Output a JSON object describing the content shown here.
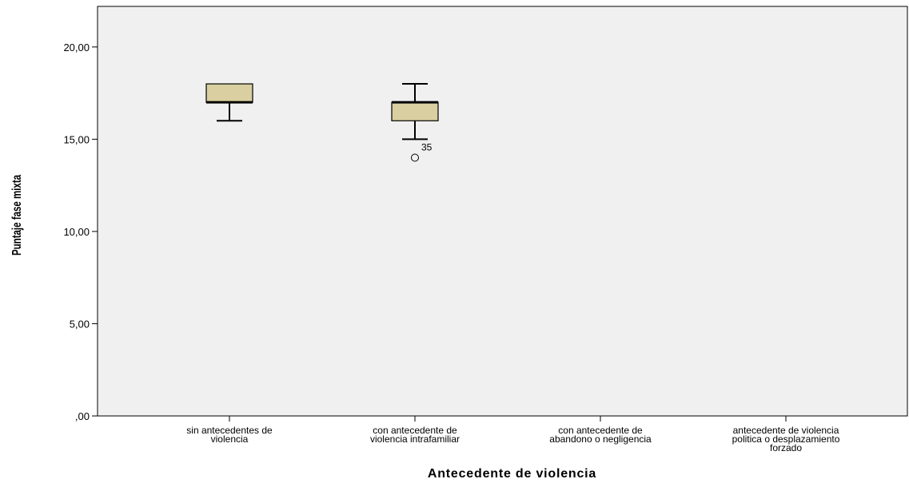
{
  "chart_data": {
    "type": "boxplot",
    "xlabel": "Antecedente de violencia",
    "ylabel": "Puntaje fase mixta",
    "ylim": [
      0,
      22.2
    ],
    "y_ticks": [
      {
        "value": 0,
        "label": ",00"
      },
      {
        "value": 5,
        "label": "5,00"
      },
      {
        "value": 10,
        "label": "10,00"
      },
      {
        "value": 15,
        "label": "15,00"
      },
      {
        "value": 20,
        "label": "20,00"
      }
    ],
    "categories": [
      {
        "label_lines": [
          "sin antecedentes de",
          "violencia"
        ]
      },
      {
        "label_lines": [
          "con antecedente de",
          "violencia intrafamiliar"
        ]
      },
      {
        "label_lines": [
          "con antecedente de",
          "abandono o negligencia"
        ]
      },
      {
        "label_lines": [
          "antecedente de violencia",
          "politica o desplazamiento",
          "forzado"
        ]
      }
    ],
    "boxes": [
      {
        "category_index": 0,
        "whisker_low": 16,
        "q1": 17,
        "median": 17,
        "q3": 18,
        "whisker_high": 18,
        "outliers": []
      },
      {
        "category_index": 1,
        "whisker_low": 15,
        "q1": 16,
        "median": 17,
        "q3": 17,
        "whisker_high": 18,
        "outliers": [
          {
            "value": 14,
            "label": "35"
          }
        ]
      }
    ],
    "grid": false,
    "colors": {
      "plot_background": "#f0f0f0",
      "box_fill": "#d9cfa0",
      "axis": "#000000"
    }
  }
}
